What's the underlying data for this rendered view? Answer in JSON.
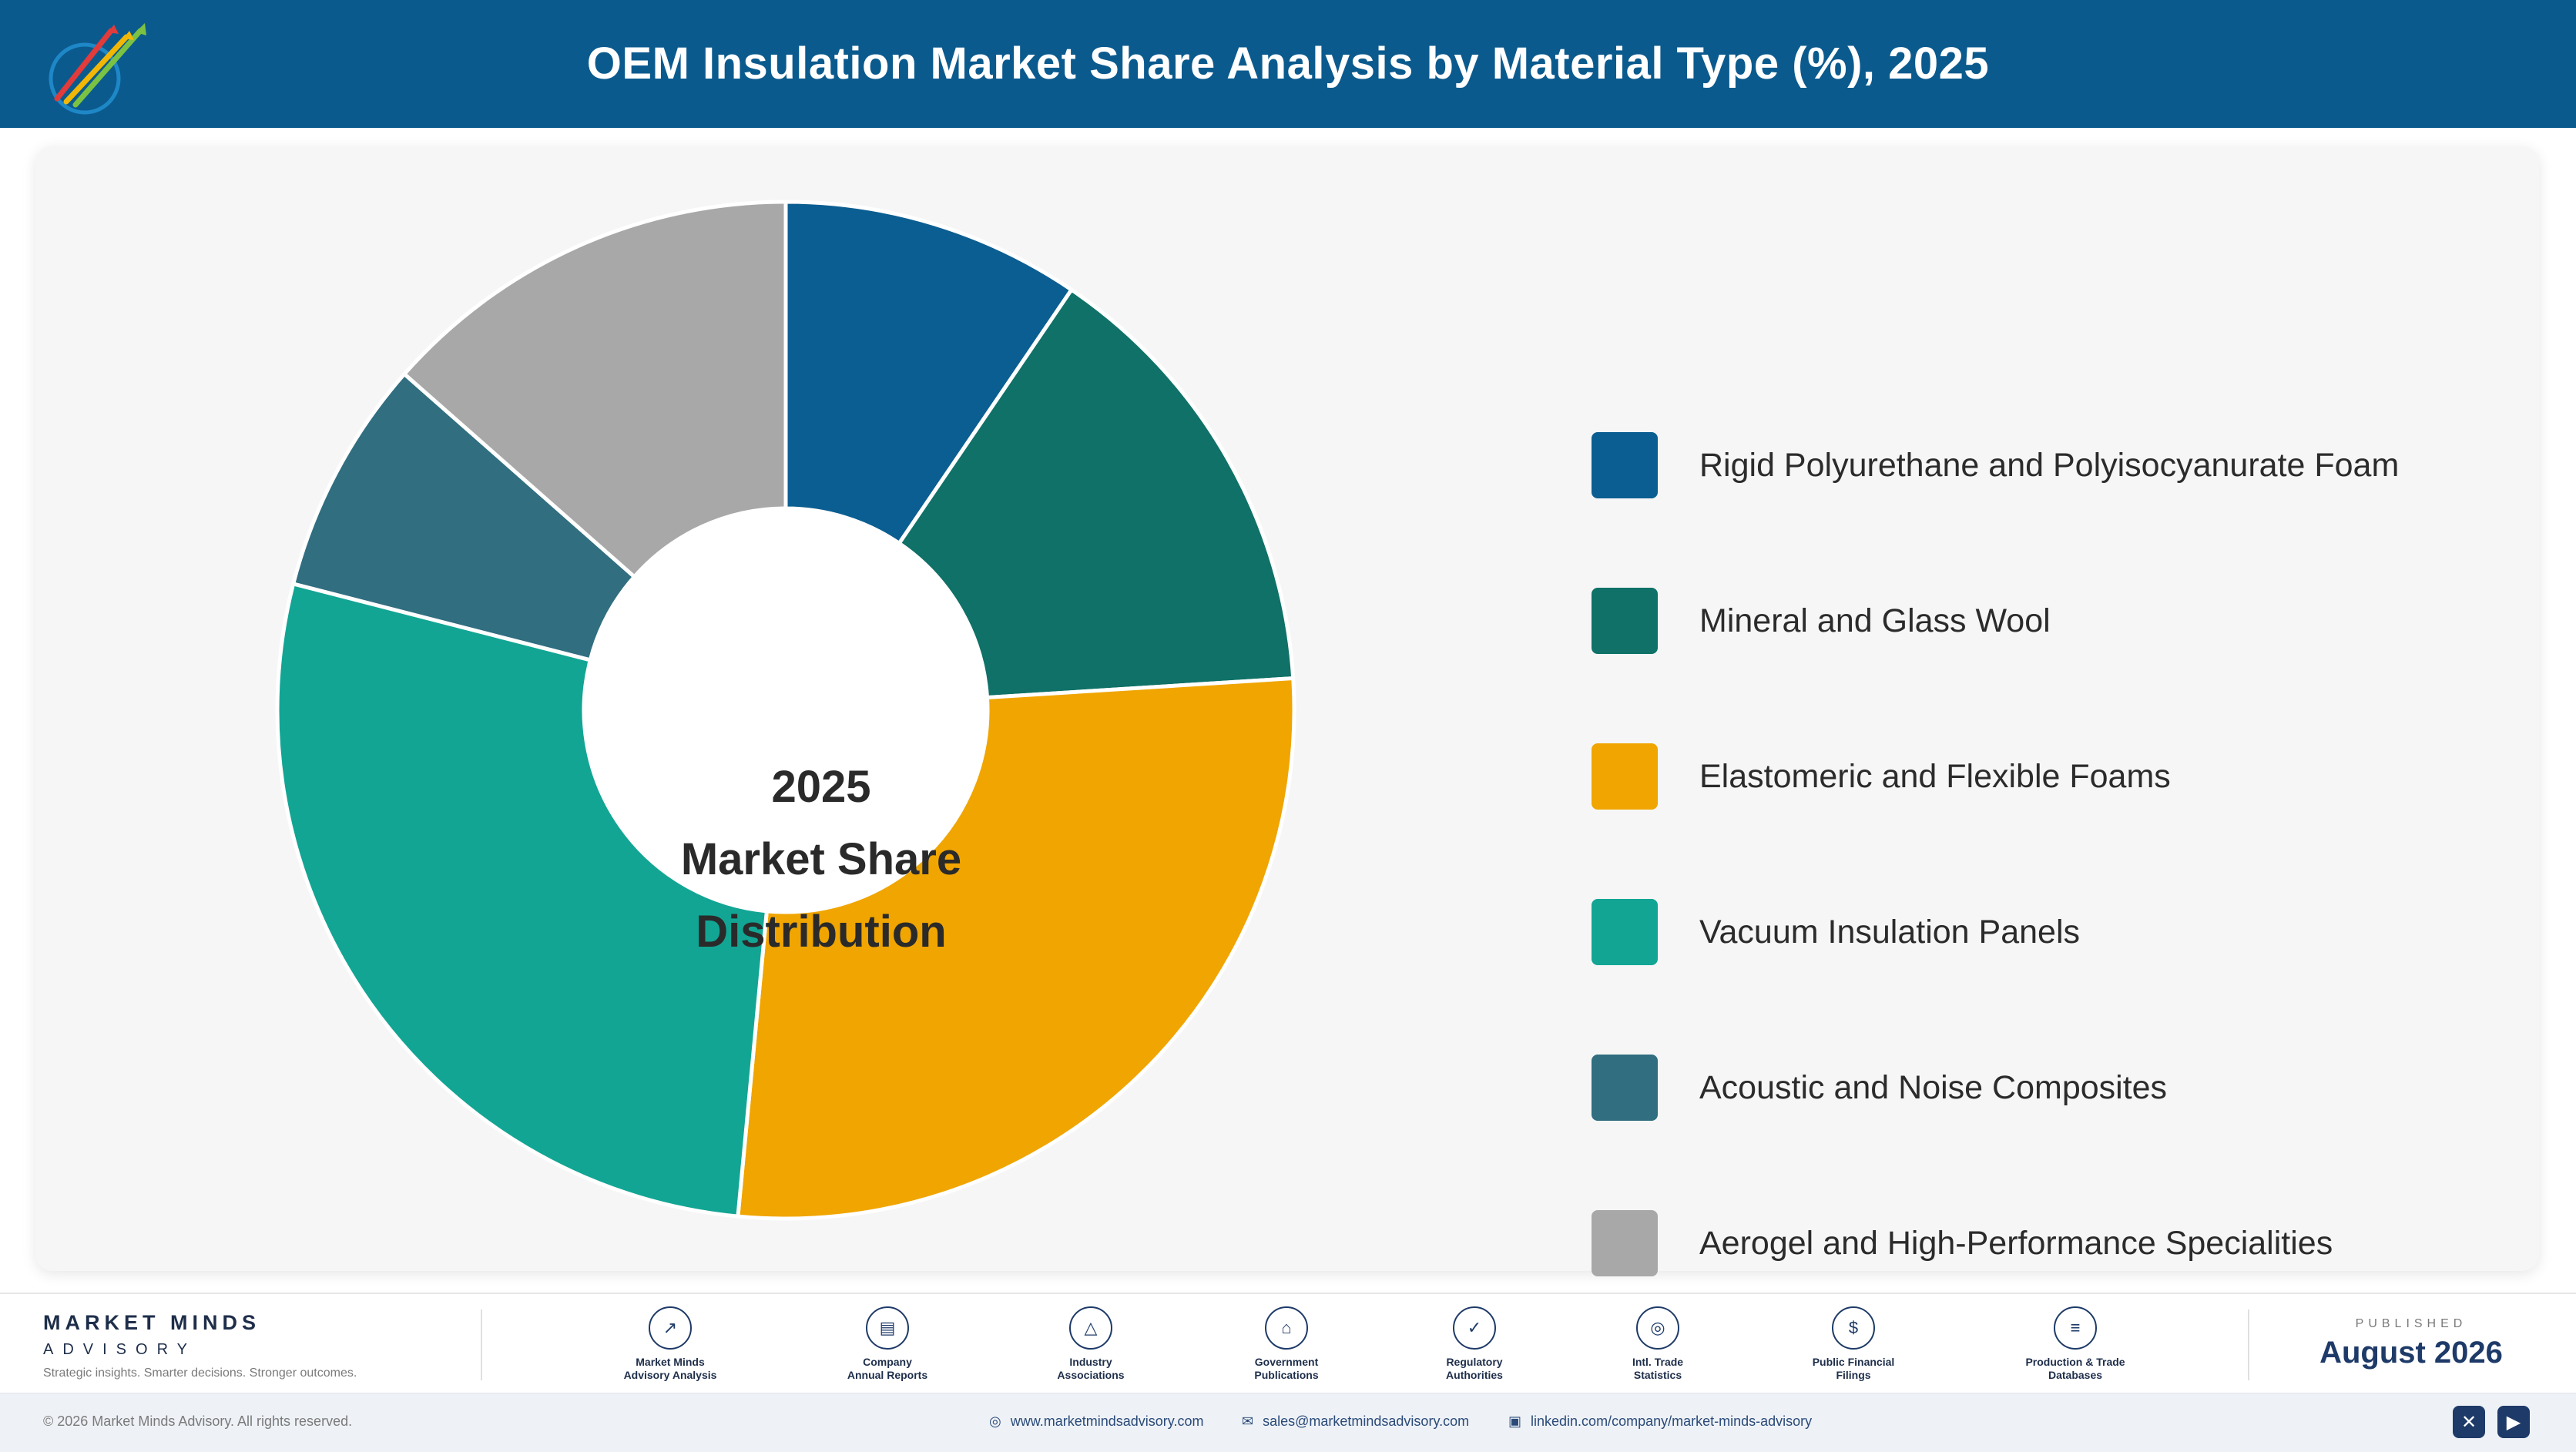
{
  "header": {
    "title": "OEM Insulation Market Share Analysis by Material Type (%), 2025",
    "logo_icon": "rising-arrows-logo-icon"
  },
  "chart_data": {
    "type": "pie",
    "variant": "donut",
    "categories": [
      "Rigid Polyurethane and Polyisocyanurate Foam",
      "Mineral and Glass Wool",
      "Elastomeric and Flexible Foams",
      "Vacuum Insulation Panels",
      "Acoustic and Noise Composites",
      "Aerogel and High-Performance Specialities"
    ],
    "values": [
      9.5,
      14.5,
      27.5,
      27.5,
      7.5,
      13.5
    ],
    "colors": [
      "#0b5e91",
      "#0f7167",
      "#f0a500",
      "#12a594",
      "#306e80",
      "#a8a8a8"
    ],
    "center_label": [
      "2025",
      "Market Share",
      "Distribution"
    ],
    "legend_position": "right"
  },
  "footer": {
    "brand_name": "MARKET MINDS",
    "brand_sub": "ADVISORY",
    "tagline": "Strategic insights. Smarter decisions. Stronger outcomes.",
    "sources": [
      {
        "label": "Market Minds\nAdvisory Analysis",
        "icon": "trend-chart-icon",
        "glyph": "↗"
      },
      {
        "label": "Company\nAnnual Reports",
        "icon": "document-icon",
        "glyph": "▤"
      },
      {
        "label": "Industry\nAssociations",
        "icon": "network-icon",
        "glyph": "△"
      },
      {
        "label": "Government\nPublications",
        "icon": "government-building-icon",
        "glyph": "⌂"
      },
      {
        "label": "Regulatory\nAuthorities",
        "icon": "shield-check-icon",
        "glyph": "✓"
      },
      {
        "label": "Intl. Trade\nStatistics",
        "icon": "globe-icon",
        "glyph": "◎"
      },
      {
        "label": "Public Financial\nFilings",
        "icon": "currency-icon",
        "glyph": "$"
      },
      {
        "label": "Production & Trade\nDatabases",
        "icon": "database-icon",
        "glyph": "≡"
      }
    ],
    "published_label": "PUBLISHED",
    "published_date": "August 2026",
    "copyright": "© 2026 Market Minds Advisory. All rights reserved.",
    "website": "www.marketmindsadvisory.com",
    "email": "sales@marketmindsadvisory.com",
    "linkedin": "linkedin.com/company/market-minds-advisory",
    "social_icons": [
      "x-social-icon",
      "youtube-icon"
    ]
  }
}
